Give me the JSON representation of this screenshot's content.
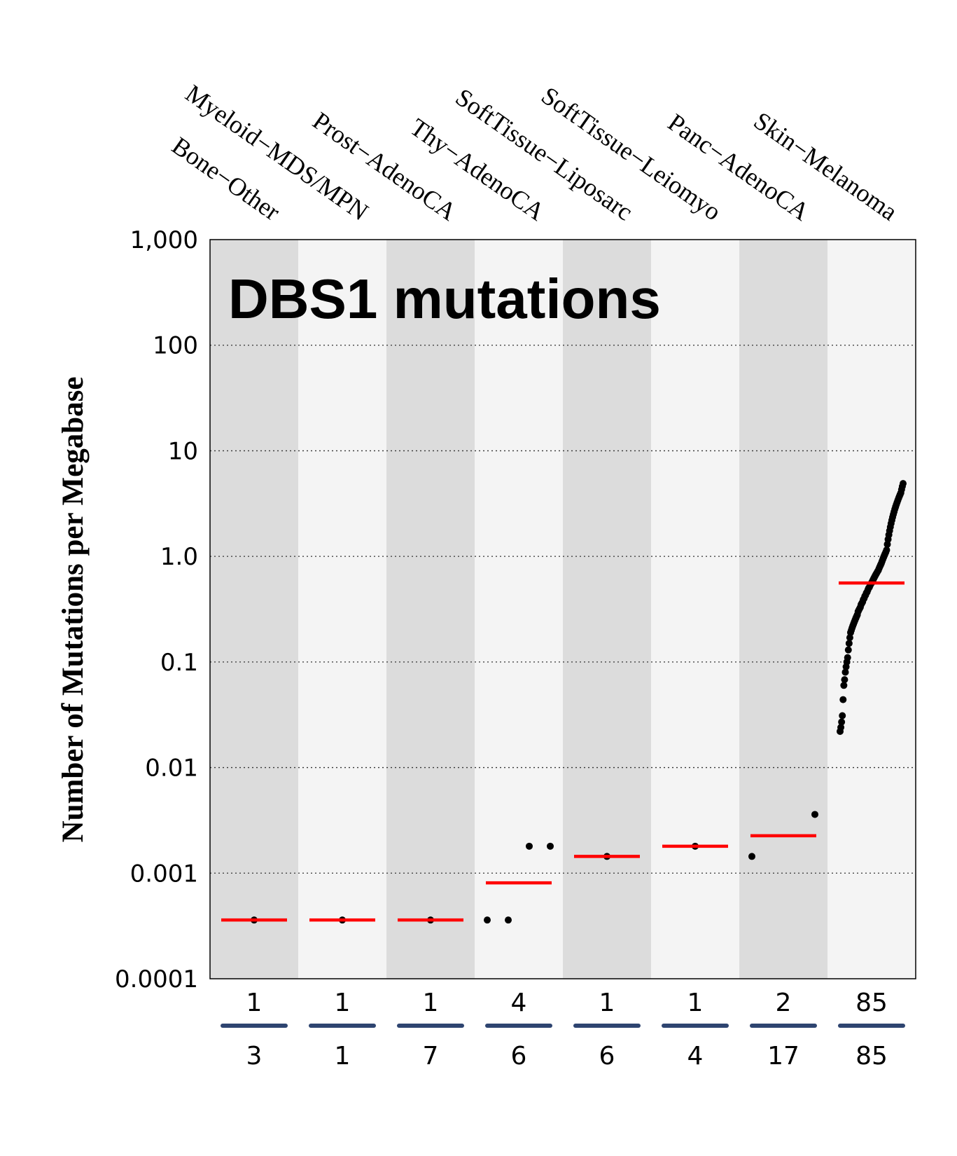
{
  "chart_data": {
    "type": "scatter",
    "title": "DBS1 mutations",
    "ylabel": "Number of Mutations per Megabase",
    "yscale": "log",
    "ylim": [
      0.0001,
      1000
    ],
    "yticks": [
      "0.0001",
      "0.001",
      "0.01",
      "0.1",
      "1.0",
      "10",
      "100",
      "1,000"
    ],
    "ytick_values": [
      0.0001,
      0.001,
      0.01,
      0.1,
      1,
      10,
      100,
      1000
    ],
    "grid": "horizontal dotted",
    "colors": {
      "band_dark": "#dcdcdc",
      "band_light": "#f4f4f4",
      "median": "#ff0000",
      "points": "#000000",
      "count_line": "#2e4470"
    },
    "categories": [
      "Bone−Other",
      "Myeloid−MDS/MPN",
      "Prost−AdenoCA",
      "Thy−AdenoCA",
      "SoftTissue−Liposarc",
      "SoftTissue−Leiomyo",
      "Panc−AdenoCA",
      "Skin−Melanoma"
    ],
    "mutated_counts": [
      "1",
      "1",
      "1",
      "4",
      "1",
      "1",
      "2",
      "85"
    ],
    "total_counts": [
      "3",
      "1",
      "7",
      "6",
      "6",
      "4",
      "17",
      "85"
    ],
    "medians": [
      0.00036,
      0.00036,
      0.00036,
      0.00081,
      0.00144,
      0.0018,
      0.00226,
      0.56
    ],
    "points": [
      [
        0.00036
      ],
      [
        0.00036
      ],
      [
        0.00036
      ],
      [
        0.00036,
        0.00036,
        0.0018,
        0.0018
      ],
      [
        0.00144
      ],
      [
        0.0018
      ],
      [
        0.00144,
        0.0036
      ],
      [
        0.022,
        0.024,
        0.027,
        0.031,
        0.044,
        0.06,
        0.068,
        0.08,
        0.09,
        0.1,
        0.11,
        0.13,
        0.15,
        0.17,
        0.19,
        0.2,
        0.21,
        0.22,
        0.23,
        0.24,
        0.25,
        0.26,
        0.27,
        0.28,
        0.3,
        0.31,
        0.32,
        0.33,
        0.35,
        0.36,
        0.37,
        0.39,
        0.4,
        0.42,
        0.43,
        0.45,
        0.46,
        0.48,
        0.5,
        0.51,
        0.53,
        0.55,
        0.56,
        0.58,
        0.6,
        0.62,
        0.64,
        0.66,
        0.68,
        0.7,
        0.72,
        0.74,
        0.77,
        0.8,
        0.83,
        0.86,
        0.9,
        0.94,
        0.98,
        1.02,
        1.06,
        1.1,
        1.15,
        1.3,
        1.45,
        1.6,
        1.75,
        1.9,
        2.05,
        2.2,
        2.35,
        2.5,
        2.65,
        2.8,
        2.95,
        3.1,
        3.25,
        3.4,
        3.55,
        3.7,
        3.85,
        4.0,
        4.3,
        4.6,
        4.9
      ]
    ]
  }
}
